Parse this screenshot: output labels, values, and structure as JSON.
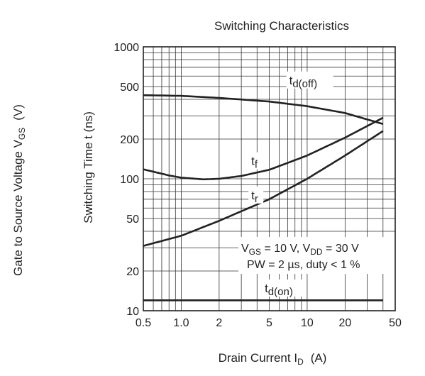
{
  "chart_data": {
    "type": "line",
    "title": "Switching Characteristics",
    "xlabel_text": "Drain Current  I",
    "xlabel_sub": "D",
    "xlabel_unit": "(A)",
    "ylabel_text": "Switching Time  t  (ns)",
    "side_label_text": "Gate to Source Voltage  V",
    "side_label_sub": "GS",
    "side_label_unit": "(V)",
    "x_scale": "log",
    "y_scale": "log",
    "xlim": [
      0.5,
      50
    ],
    "ylim": [
      10,
      1000
    ],
    "grid": true,
    "x_ticks": [
      {
        "value": 0.5,
        "label": "0.5"
      },
      {
        "value": 1,
        "label": "1.0"
      },
      {
        "value": 2,
        "label": "2"
      },
      {
        "value": 5,
        "label": "5"
      },
      {
        "value": 10,
        "label": "10"
      },
      {
        "value": 20,
        "label": "20"
      },
      {
        "value": 50,
        "label": "50"
      }
    ],
    "y_ticks": [
      {
        "value": 10,
        "label": "10"
      },
      {
        "value": 20,
        "label": "20"
      },
      {
        "value": 50,
        "label": "50"
      },
      {
        "value": 100,
        "label": "100"
      },
      {
        "value": 200,
        "label": "200"
      },
      {
        "value": 500,
        "label": "500"
      },
      {
        "value": 1000,
        "label": "1000"
      }
    ],
    "series": [
      {
        "name": "t_d(off)",
        "label_main": "t",
        "label_sub": "d(off)",
        "x": [
          0.5,
          1,
          2,
          5,
          10,
          20,
          40
        ],
        "y": [
          430,
          425,
          410,
          385,
          355,
          315,
          260
        ]
      },
      {
        "name": "t_f",
        "label_main": "t",
        "label_sub": "f",
        "x": [
          0.5,
          0.8,
          1,
          1.5,
          2,
          3,
          5,
          10,
          20,
          40
        ],
        "y": [
          118,
          106,
          102,
          99,
          100,
          105,
          117,
          150,
          205,
          290
        ]
      },
      {
        "name": "t_r",
        "label_main": "t",
        "label_sub": "r",
        "x": [
          0.5,
          1,
          2,
          5,
          10,
          20,
          40
        ],
        "y": [
          31,
          37,
          48,
          70,
          100,
          150,
          230
        ]
      },
      {
        "name": "t_d(on)",
        "label_main": "t",
        "label_sub": "d(on)",
        "x": [
          0.5,
          40
        ],
        "y": [
          12,
          12
        ]
      }
    ],
    "annotation": {
      "line1": [
        {
          "t": "V",
          "s": false
        },
        {
          "t": "GS",
          "s": true
        },
        {
          "t": " = 10 V, V",
          "s": false
        },
        {
          "t": "DD",
          "s": true
        },
        {
          "t": " = 30 V",
          "s": false
        }
      ],
      "line2": "PW = 2 µs, duty < 1 %"
    }
  }
}
